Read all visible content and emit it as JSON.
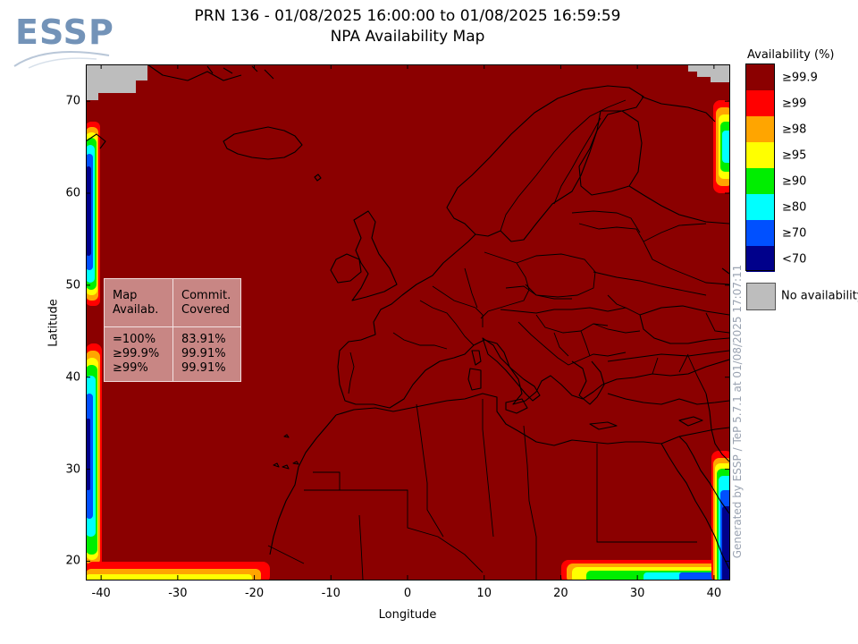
{
  "header": {
    "title_line1": "PRN 136 - 01/08/2025 16:00:00 to 01/08/2025 16:59:59",
    "title_line2": "NPA Availability Map",
    "logo_text": "ESSP"
  },
  "chart_data": {
    "type": "heatmap",
    "title": "NPA Availability Map",
    "xlabel": "Longitude",
    "ylabel": "Latitude",
    "xlim": [
      -42,
      42
    ],
    "ylim": [
      18,
      74
    ],
    "x_ticks": [
      "-40",
      "-30",
      "-20",
      "-10",
      "0",
      "10",
      "20",
      "30",
      "40"
    ],
    "y_ticks": [
      "20",
      "30",
      "40",
      "50",
      "60",
      "70"
    ],
    "background_category": "≥99.9",
    "legend": {
      "title": "Availability (%)",
      "placement": "right",
      "entries": [
        {
          "label": "≥99.9",
          "color": "#8b0000"
        },
        {
          "label": "≥99",
          "color": "#ff0000"
        },
        {
          "label": "≥98",
          "color": "#ffa500"
        },
        {
          "label": "≥95",
          "color": "#ffff00"
        },
        {
          "label": "≥90",
          "color": "#00ee00"
        },
        {
          "label": "≥80",
          "color": "#00ffff"
        },
        {
          "label": "≥70",
          "color": "#0050ff"
        },
        {
          "label": "<70",
          "color": "#00008b"
        }
      ],
      "no_availability": {
        "label": "No availability",
        "color": "#bdbdbd"
      }
    },
    "stats_table": {
      "headers": [
        "Map\nAvailab.",
        "Commit.\nCovered"
      ],
      "rows": [
        {
          "map": "=100%",
          "covered": "83.91%"
        },
        {
          "map": "≥99.9%",
          "covered": "99.91%"
        },
        {
          "map": "≥99%",
          "covered": "99.91%"
        }
      ]
    }
  },
  "footer": {
    "watermark": "Generated by ESSP / TeP 5.7.1 at 01/08/2025 17:07:11"
  }
}
